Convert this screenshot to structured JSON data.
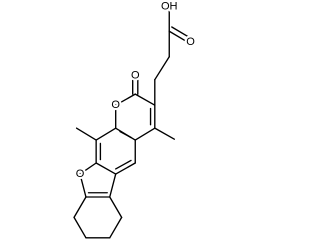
{
  "atoms": [
    {
      "label": "OH"
    },
    {
      "label": "O"
    },
    {
      "label": "O"
    },
    {
      "label": "O"
    },
    {
      "label": "O"
    }
  ]
}
